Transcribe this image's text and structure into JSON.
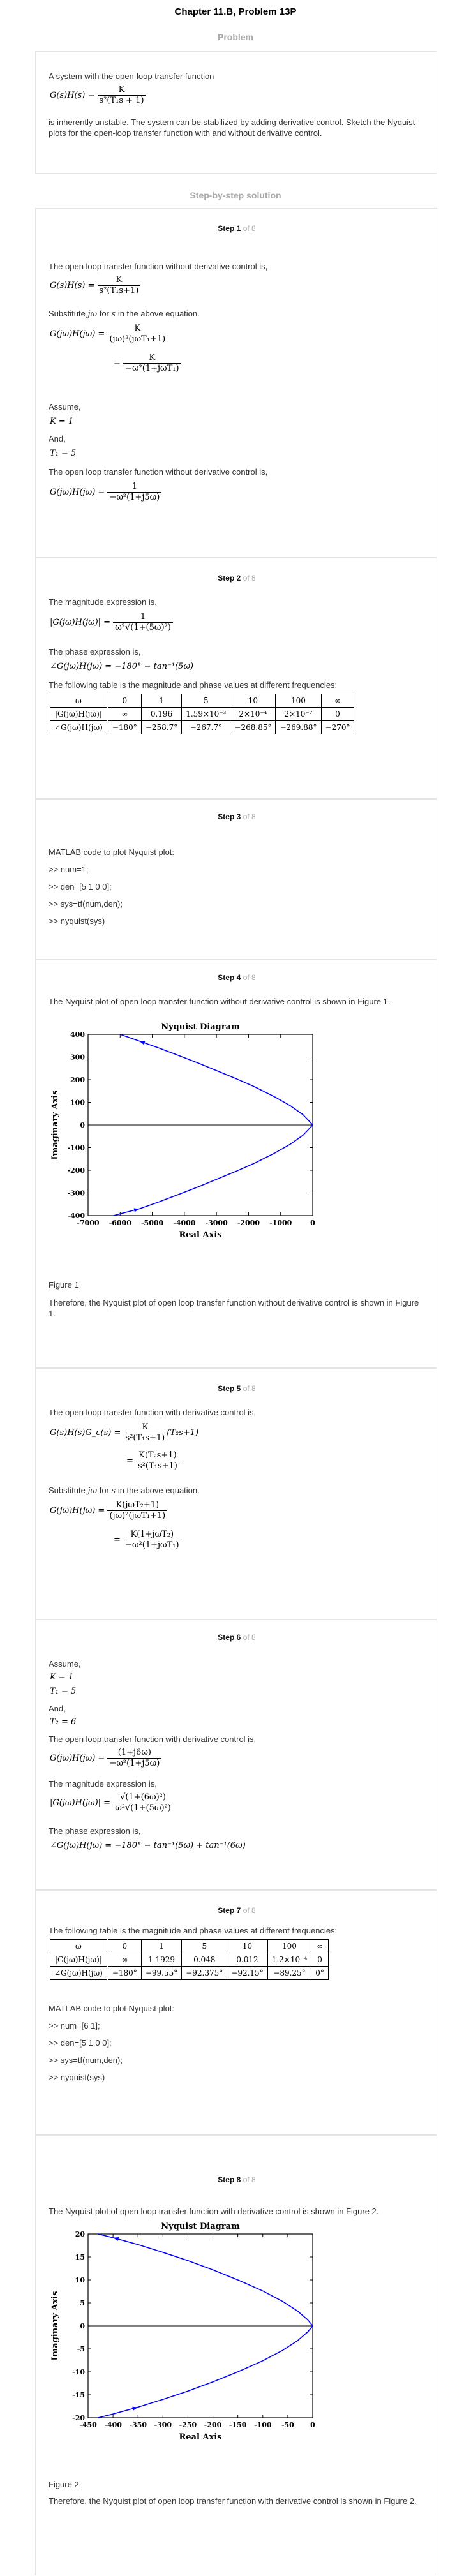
{
  "header": {
    "title": "Chapter 11.B, Problem 13P",
    "problem_heading": "Problem",
    "solution_heading": "Step-by-step solution"
  },
  "problem": {
    "intro": "A system with the open-loop transfer function",
    "lhs": "G(s)H(s) =",
    "tf_num": "K",
    "tf_den": "s²(T₁s + 1)",
    "text": "is inherently unstable. The system can be stabilized by adding derivative control. Sketch the Nyquist plots for the open-loop transfer function with and without derivative control."
  },
  "step_word": "Step",
  "step_of": "of 8",
  "steps": {
    "s1": {
      "n": "1",
      "t1": "The open loop transfer function without derivative control is,",
      "eq1_lhs": "G(s)H(s) =",
      "eq1_num": "K",
      "eq1_den": "s²(T₁s+1)",
      "sub_a": "Substitute",
      "sub_b": "jω",
      "sub_c": "for",
      "sub_d": "s",
      "sub_e": "in the above equation.",
      "eq2_lhs": "G(jω)H(jω) =",
      "eq2_num": "K",
      "eq2_den": "(jω)²(jωT₁+1)",
      "eq3_lhs": "=",
      "eq3_num": "K",
      "eq3_den": "−ω²(1+jωT₁)",
      "assume": "Assume,",
      "k": "K = 1",
      "and": "And,",
      "t1v": "T₁ = 5",
      "t2": "The open loop transfer function without derivative control is,",
      "eq4_lhs": "G(jω)H(jω) =",
      "eq4_num": "1",
      "eq4_den": "−ω²(1+j5ω)"
    },
    "s2": {
      "n": "2",
      "t1": "The magnitude expression is,",
      "mag_lhs": "|G(jω)H(jω)| =",
      "mag_num": "1",
      "mag_den": "ω²√(1+(5ω)²)",
      "t2": "The phase expression is,",
      "phase": "∠G(jω)H(jω) = −180° − tan⁻¹(5ω)",
      "t3": "The following table is the magnitude and phase values at different frequencies:",
      "table": {
        "head": [
          "ω",
          "0",
          "1",
          "5",
          "10",
          "100",
          "∞"
        ],
        "rows": [
          [
            "|G(jω)H(jω)|",
            "∞",
            "0.196",
            "1.59×10⁻³",
            "2×10⁻⁴",
            "2×10⁻⁷",
            "0"
          ],
          [
            "∠G(jω)H(jω)",
            "−180°",
            "−258.7°",
            "−267.7°",
            "−268.85°",
            "−269.88°",
            "−270°"
          ]
        ]
      }
    },
    "s3": {
      "n": "3",
      "t1": "MATLAB code to plot Nyquist plot:",
      "code": [
        ">> num=1;",
        ">> den=[5 1 0 0];",
        ">> sys=tf(num,den);",
        ">> nyquist(sys)"
      ]
    },
    "s4": {
      "n": "4",
      "t1": "The Nyquist plot of open loop transfer function without derivative control is shown in Figure 1.",
      "caption": "Figure 1",
      "t2": "Therefore, the Nyquist plot of open loop transfer function without derivative control is shown in Figure 1."
    },
    "s5": {
      "n": "5",
      "t1": "The open loop transfer function with derivative control is,",
      "eq1_lhs": "G(s)H(s)G_c(s) =",
      "eq1_num": "K",
      "eq1_den": "s²(T₁s+1)",
      "eq1_tail": "(T₂s+1)",
      "eq2_lhs": "=",
      "eq2_num": "K(T₂s+1)",
      "eq2_den": "s²(T₁s+1)",
      "sub_a": "Substitute",
      "sub_b": "jω",
      "sub_c": "for",
      "sub_d": "s",
      "sub_e": "in the above equation.",
      "eq3_lhs": "G(jω)H(jω) =",
      "eq3_num": "K(jωT₂+1)",
      "eq3_den": "(jω)²(jωT₁+1)",
      "eq4_lhs": "=",
      "eq4_num": "K(1+jωT₂)",
      "eq4_den": "−ω²(1+jωT₁)"
    },
    "s6": {
      "n": "6",
      "assume": "Assume,",
      "k": "K = 1",
      "t1v": "T₁ = 5",
      "and": "And,",
      "t2v": "T₂ = 6",
      "t1": "The open loop transfer function with derivative control is,",
      "eq1_lhs": "G(jω)H(jω) =",
      "eq1_num": "(1+j6ω)",
      "eq1_den": "−ω²(1+j5ω)",
      "t2": "The magnitude expression is,",
      "mag_lhs": "|G(jω)H(jω)| =",
      "mag_num": "√(1+(6ω)²)",
      "mag_den": "ω²√(1+(5ω)²)",
      "t3": "The phase expression is,",
      "phase": "∠G(jω)H(jω) = −180° − tan⁻¹(5ω) + tan⁻¹(6ω)"
    },
    "s7": {
      "n": "7",
      "t1": "The following table is the magnitude and phase values at different frequencies:",
      "table": {
        "head": [
          "ω",
          "0",
          "1",
          "5",
          "10",
          "100",
          "∞"
        ],
        "rows": [
          [
            "|G(jω)H(jω)|",
            "∞",
            "1.1929",
            "0.048",
            "0.012",
            "1.2×10⁻⁴",
            "0"
          ],
          [
            "∠G(jω)H(jω)",
            "−180°",
            "−99.55°",
            "−92.375°",
            "−92.15°",
            "−89.25°",
            "0°"
          ]
        ]
      },
      "t2": "MATLAB code to plot Nyquist plot:",
      "code": [
        ">> num=[6 1];",
        ">> den=[5 1 0 0];",
        ">> sys=tf(num,den);",
        ">> nyquist(sys)"
      ]
    },
    "s8": {
      "n": "8",
      "t1": "The Nyquist plot of open loop transfer function with derivative control is shown in Figure 2.",
      "caption": "Figure 2",
      "t2": "Therefore, the Nyquist plot of open loop transfer function with derivative control is shown in Figure 2."
    }
  },
  "chart_data": [
    {
      "type": "line",
      "title": "Nyquist Diagram",
      "xlabel": "Real Axis",
      "ylabel": "Imaginary Axis",
      "xlim": [
        -7000,
        0
      ],
      "ylim": [
        -400,
        400
      ],
      "xticks": [
        -7000,
        -6000,
        -5000,
        -4000,
        -3000,
        -2000,
        -1000,
        0
      ],
      "yticks": [
        -400,
        -300,
        -200,
        -100,
        0,
        100,
        200,
        300,
        400
      ],
      "series": [
        {
          "name": "nyquist",
          "color": "#0000ff",
          "x": [
            -6000,
            -5400,
            -4800,
            -4200,
            -3600,
            -3000,
            -2400,
            -1800,
            -1200,
            -700,
            -300,
            0,
            -300,
            -700,
            -1200,
            -1800,
            -2400,
            -3000,
            -3600,
            -4200,
            -4800,
            -5400,
            -6000,
            -6200
          ],
          "y": [
            400,
            370,
            340,
            308,
            275,
            240,
            205,
            168,
            125,
            85,
            45,
            0,
            -45,
            -85,
            -125,
            -168,
            -205,
            -240,
            -275,
            -308,
            -340,
            -370,
            -392,
            -400
          ]
        }
      ]
    },
    {
      "type": "line",
      "title": "Nyquist Diagram",
      "xlabel": "Real Axis",
      "ylabel": "Imaginary Axis",
      "xlim": [
        -450,
        0
      ],
      "ylim": [
        -20,
        20
      ],
      "xticks": [
        -450,
        -400,
        -350,
        -300,
        -250,
        -200,
        -150,
        -100,
        -50,
        0
      ],
      "yticks": [
        -20,
        -15,
        -10,
        -5,
        0,
        5,
        10,
        15,
        20
      ],
      "series": [
        {
          "name": "nyquist",
          "color": "#0000ff",
          "x": [
            -430,
            -400,
            -350,
            -300,
            -250,
            -200,
            -150,
            -100,
            -60,
            -30,
            -10,
            0,
            -10,
            -30,
            -60,
            -100,
            -150,
            -200,
            -250,
            -300,
            -350,
            -400,
            -430
          ],
          "y": [
            20,
            19.2,
            17.7,
            16,
            14.2,
            12.2,
            10,
            7.6,
            5.3,
            3.2,
            1.3,
            0,
            -1.3,
            -3.2,
            -5.3,
            -7.6,
            -10,
            -12.2,
            -14.2,
            -16,
            -17.7,
            -19.2,
            -20
          ]
        }
      ]
    }
  ]
}
